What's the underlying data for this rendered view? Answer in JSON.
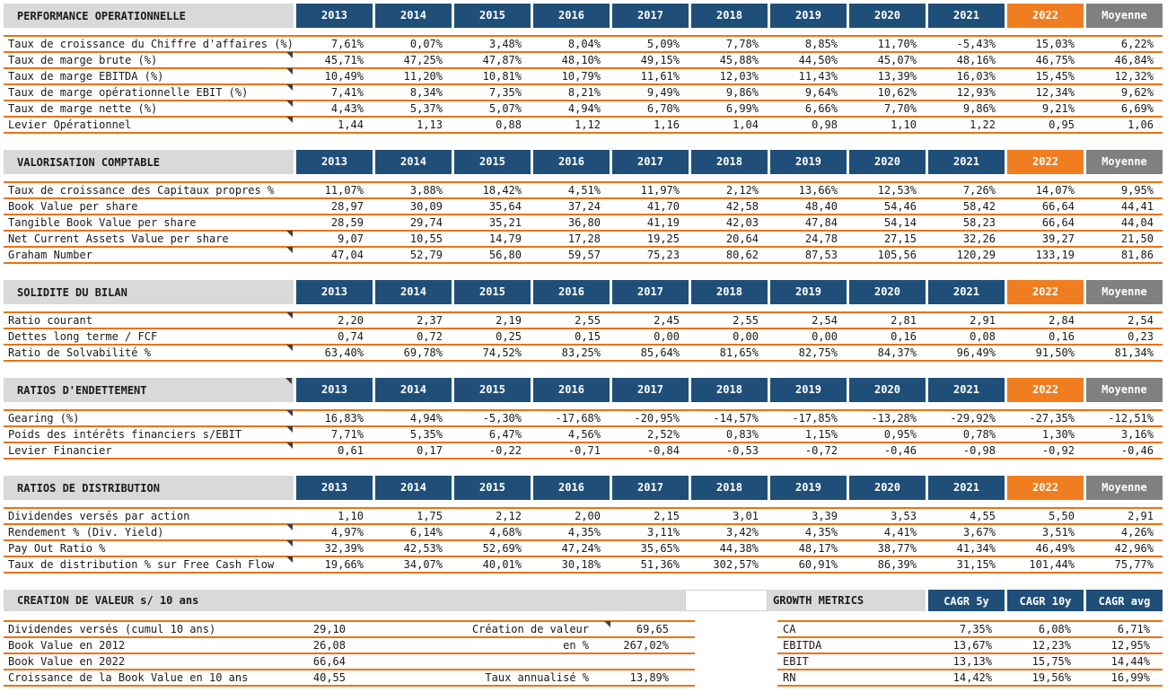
{
  "colors": {
    "header_navy": "#1f4e79",
    "header_orange_2022": "#f07d1f",
    "header_gray_moyenne": "#808080",
    "section_bar_gray": "#d9d9d9",
    "row_line_orange": "#e9730f",
    "text": "#1a1a1a"
  },
  "columns": [
    "2013",
    "2014",
    "2015",
    "2016",
    "2017",
    "2018",
    "2019",
    "2020",
    "2021",
    "2022",
    "Moyenne"
  ],
  "sections": [
    {
      "title": "PERFORMANCE OPERATIONNELLE",
      "header_marker": false,
      "rows": [
        {
          "label": "Taux de croissance du Chiffre d'affaires (%)",
          "marker": false,
          "values": [
            "7,61%",
            "0,07%",
            "3,48%",
            "8,04%",
            "5,09%",
            "7,78%",
            "8,85%",
            "11,70%",
            "-5,43%",
            "15,03%",
            "6,22%"
          ]
        },
        {
          "label": "Taux de marge brute (%)",
          "marker": true,
          "values": [
            "45,71%",
            "47,25%",
            "47,87%",
            "48,10%",
            "49,15%",
            "45,88%",
            "44,50%",
            "45,07%",
            "48,16%",
            "46,75%",
            "46,84%"
          ]
        },
        {
          "label": "Taux de marge EBITDA (%)",
          "marker": true,
          "values": [
            "10,49%",
            "11,20%",
            "10,81%",
            "10,79%",
            "11,61%",
            "12,03%",
            "11,43%",
            "13,39%",
            "16,03%",
            "15,45%",
            "12,32%"
          ]
        },
        {
          "label": "Taux de marge opérationnelle EBIT (%)",
          "marker": true,
          "values": [
            "7,41%",
            "8,34%",
            "7,35%",
            "8,21%",
            "9,49%",
            "9,86%",
            "9,64%",
            "10,62%",
            "12,93%",
            "12,34%",
            "9,62%"
          ]
        },
        {
          "label": "Taux de marge nette (%)",
          "marker": true,
          "values": [
            "4,43%",
            "5,37%",
            "5,07%",
            "4,94%",
            "6,70%",
            "6,99%",
            "6,66%",
            "7,70%",
            "9,86%",
            "9,21%",
            "6,69%"
          ]
        },
        {
          "label": "Levier Opérationnel",
          "marker": true,
          "values": [
            "1,44",
            "1,13",
            "0,88",
            "1,12",
            "1,16",
            "1,04",
            "0,98",
            "1,10",
            "1,22",
            "0,95",
            "1,06"
          ]
        }
      ]
    },
    {
      "title": "VALORISATION COMPTABLE",
      "header_marker": false,
      "rows": [
        {
          "label": "Taux de croissance des Capitaux propres %",
          "marker": false,
          "values": [
            "11,07%",
            "3,88%",
            "18,42%",
            "4,51%",
            "11,97%",
            "2,12%",
            "13,66%",
            "12,53%",
            "7,26%",
            "14,07%",
            "9,95%"
          ]
        },
        {
          "label": "Book Value per share",
          "marker": false,
          "values": [
            "28,97",
            "30,09",
            "35,64",
            "37,24",
            "41,70",
            "42,58",
            "48,40",
            "54,46",
            "58,42",
            "66,64",
            "44,41"
          ]
        },
        {
          "label": "Tangible Book Value per share",
          "marker": false,
          "values": [
            "28,59",
            "29,74",
            "35,21",
            "36,80",
            "41,19",
            "42,03",
            "47,84",
            "54,14",
            "58,23",
            "66,64",
            "44,04"
          ]
        },
        {
          "label": "Net Current Assets Value per share",
          "marker": true,
          "values": [
            "9,07",
            "10,55",
            "14,79",
            "17,28",
            "19,25",
            "20,64",
            "24,78",
            "27,15",
            "32,26",
            "39,27",
            "21,50"
          ]
        },
        {
          "label": "Graham Number",
          "marker": true,
          "values": [
            "47,04",
            "52,79",
            "56,80",
            "59,57",
            "75,23",
            "80,62",
            "87,53",
            "105,56",
            "120,29",
            "133,19",
            "81,86"
          ]
        }
      ]
    },
    {
      "title": "SOLIDITE DU BILAN",
      "header_marker": false,
      "rows": [
        {
          "label": "Ratio courant",
          "marker": true,
          "values": [
            "2,20",
            "2,37",
            "2,19",
            "2,55",
            "2,45",
            "2,55",
            "2,54",
            "2,81",
            "2,91",
            "2,84",
            "2,54"
          ]
        },
        {
          "label": "Dettes long terme / FCF",
          "marker": false,
          "values": [
            "0,74",
            "0,72",
            "0,25",
            "0,15",
            "0,00",
            "0,00",
            "0,00",
            "0,16",
            "0,08",
            "0,16",
            "0,23"
          ]
        },
        {
          "label": "Ratio de Solvabilité %",
          "marker": true,
          "values": [
            "63,40%",
            "69,78%",
            "74,52%",
            "83,25%",
            "85,64%",
            "81,65%",
            "82,75%",
            "84,37%",
            "96,49%",
            "91,50%",
            "81,34%"
          ]
        }
      ]
    },
    {
      "title": "RATIOS D'ENDETTEMENT",
      "header_marker": true,
      "rows": [
        {
          "label": "Gearing (%)",
          "marker": true,
          "values": [
            "16,83%",
            "4,94%",
            "-5,30%",
            "-17,68%",
            "-20,95%",
            "-14,57%",
            "-17,85%",
            "-13,28%",
            "-29,92%",
            "-27,35%",
            "-12,51%"
          ]
        },
        {
          "label": "Poids des intérêts financiers s/EBIT",
          "marker": true,
          "values": [
            "7,71%",
            "5,35%",
            "6,47%",
            "4,56%",
            "2,52%",
            "0,83%",
            "1,15%",
            "0,95%",
            "0,78%",
            "1,30%",
            "3,16%"
          ]
        },
        {
          "label": "Levier Financier",
          "marker": true,
          "values": [
            "0,61",
            "0,17",
            "-0,22",
            "-0,71",
            "-0,84",
            "-0,53",
            "-0,72",
            "-0,46",
            "-0,98",
            "-0,92",
            "-0,46"
          ]
        }
      ]
    },
    {
      "title": "RATIOS DE DISTRIBUTION",
      "header_marker": false,
      "rows": [
        {
          "label": "Dividendes versés par action",
          "marker": false,
          "values": [
            "1,10",
            "1,75",
            "2,12",
            "2,00",
            "2,15",
            "3,01",
            "3,39",
            "3,53",
            "4,55",
            "5,50",
            "2,91"
          ]
        },
        {
          "label": "Rendement % (Div. Yield)",
          "marker": true,
          "values": [
            "4,97%",
            "6,14%",
            "4,68%",
            "4,35%",
            "3,11%",
            "3,42%",
            "4,35%",
            "4,41%",
            "3,67%",
            "3,51%",
            "4,26%"
          ]
        },
        {
          "label": "Pay Out Ratio %",
          "marker": true,
          "values": [
            "32,39%",
            "42,53%",
            "52,69%",
            "47,24%",
            "35,65%",
            "44,38%",
            "48,17%",
            "38,77%",
            "41,34%",
            "46,49%",
            "42,96%"
          ]
        },
        {
          "label": "Taux de distribution % sur Free Cash Flow",
          "marker": true,
          "values": [
            "19,66%",
            "34,07%",
            "40,01%",
            "30,18%",
            "51,36%",
            "302,57%",
            "60,91%",
            "86,39%",
            "31,15%",
            "101,44%",
            "75,77%"
          ]
        }
      ]
    }
  ],
  "bottom": {
    "creation": {
      "title": "CREATION DE VALEUR s/ 10 ans",
      "rows": [
        {
          "label": "Dividendes versés (cumul 10 ans)",
          "v1": "29,10",
          "mid": "Création de valeur",
          "marker": true,
          "v2": "69,65"
        },
        {
          "label": "Book Value en 2012",
          "v1": "26,08",
          "mid": "en %",
          "marker": false,
          "v2": "267,02%"
        },
        {
          "label": "Book Value en 2022",
          "v1": "66,64",
          "mid": "",
          "marker": false,
          "v2": ""
        },
        {
          "label": "Croissance de la Book Value en 10 ans",
          "v1": "40,55",
          "mid": "Taux annualisé %",
          "marker": false,
          "v2": "13,89%"
        }
      ]
    },
    "growth": {
      "title": "GROWTH METRICS",
      "columns": [
        "CAGR 5y",
        "CAGR 10y",
        "CAGR avg"
      ],
      "rows": [
        {
          "label": "CA",
          "v5": "7,35%",
          "v10": "6,08%",
          "avg": "6,71%"
        },
        {
          "label": "EBITDA",
          "v5": "13,67%",
          "v10": "12,23%",
          "avg": "12,95%"
        },
        {
          "label": "EBIT",
          "v5": "13,13%",
          "v10": "15,75%",
          "avg": "14,44%"
        },
        {
          "label": "RN",
          "v5": "14,42%",
          "v10": "19,56%",
          "avg": "16,99%"
        }
      ]
    }
  }
}
